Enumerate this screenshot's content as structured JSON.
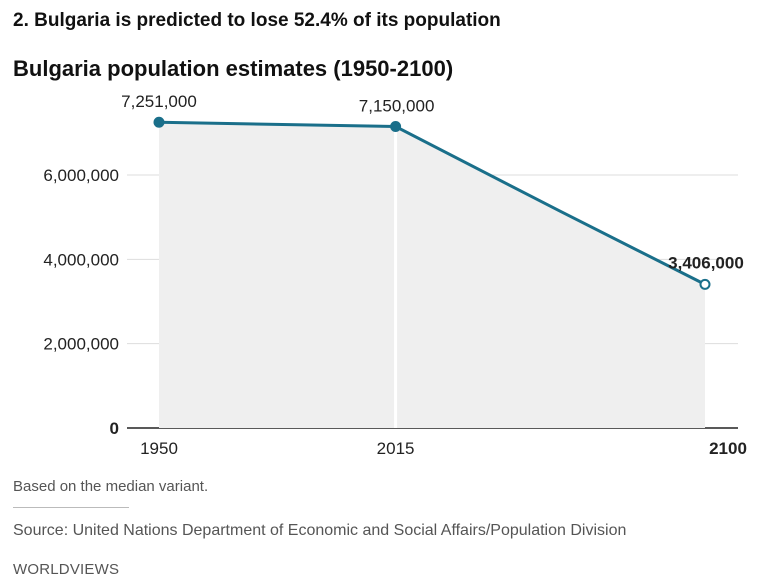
{
  "headline": "2. Bulgaria is predicted to lose 52.4% of its population",
  "chart_data": {
    "type": "line",
    "title": "Bulgaria population estimates (1950-2100)",
    "xlabel": "",
    "ylabel": "",
    "x": [
      1950,
      2015,
      2060,
      2100
    ],
    "values": [
      7251000,
      7150000,
      5150000,
      3406000
    ],
    "x_ticks": [
      "1950",
      "2015",
      "2100"
    ],
    "y_ticks": [
      "0",
      "2,000,000",
      "4,000,000",
      "6,000,000"
    ],
    "y_tick_values": [
      0,
      2000000,
      4000000,
      6000000
    ],
    "ylim": [
      0,
      7500000
    ],
    "xlim": [
      1950,
      2100
    ],
    "data_labels": [
      {
        "label": "7,251,000",
        "x": 1950,
        "value": 7251000
      },
      {
        "label": "7,150,000",
        "x": 2015,
        "value": 7150000
      },
      {
        "label": "3,406,000",
        "x": 2100,
        "value": 3406000
      }
    ],
    "grid": true,
    "colors": {
      "line": "#1a6f8a",
      "area": "#efefef",
      "grid": "#dddddd"
    }
  },
  "footer": {
    "note": "Based on the median variant.",
    "source": "Source: United Nations Department of Economic and Social Affairs/Population Division",
    "brand": "WORLDVIEWS"
  }
}
